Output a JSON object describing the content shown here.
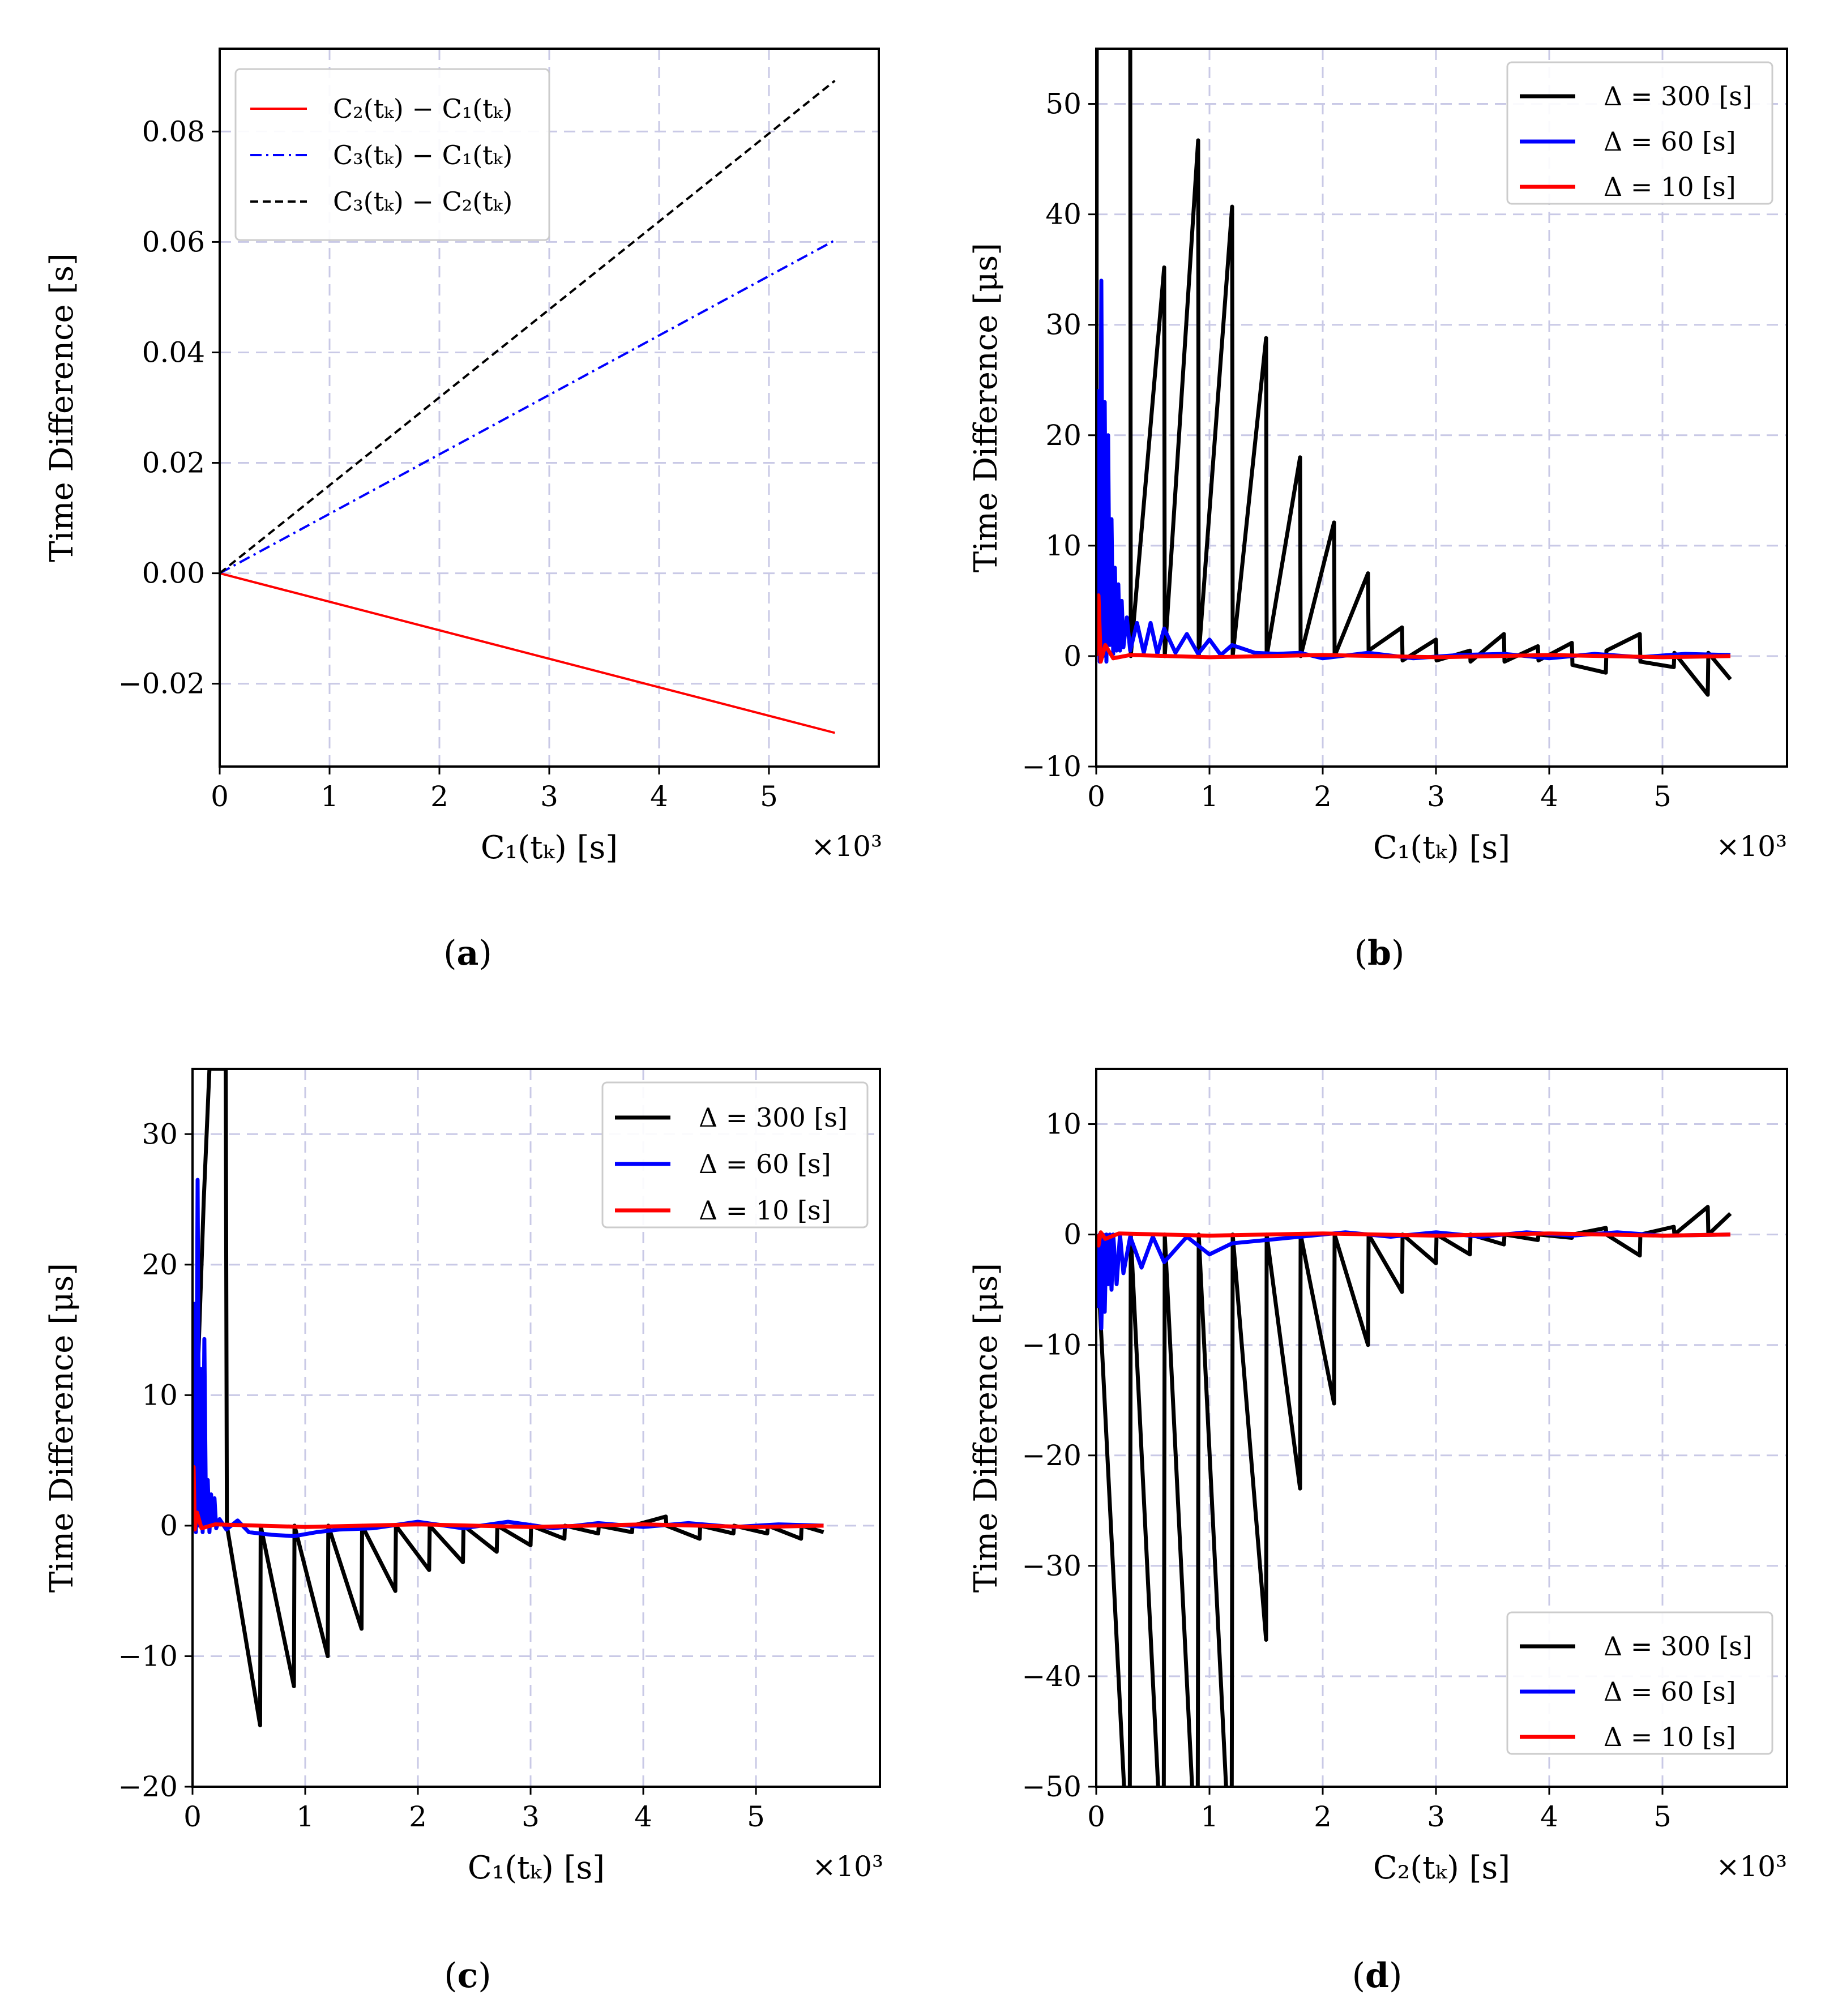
{
  "figure": {
    "panels": [
      {
        "caption": "a",
        "ylabel": "Time Difference [s]",
        "xlabel": "C₁(tₖ) [s]",
        "x_multiplier": "×10³",
        "legend_position": "top-left",
        "xlim": [
          0,
          6000
        ],
        "ylim": [
          -0.035,
          0.095
        ],
        "xticks": [
          0,
          1000,
          2000,
          3000,
          4000,
          5000
        ],
        "xtick_labels": [
          "0",
          "1",
          "2",
          "3",
          "4",
          "5"
        ],
        "yticks": [
          -0.02,
          0.0,
          0.02,
          0.04,
          0.06,
          0.08
        ],
        "ytick_labels": [
          "−0.02",
          "0.00",
          "0.02",
          "0.04",
          "0.06",
          "0.08"
        ]
      },
      {
        "caption": "b",
        "ylabel": "Time Difference [μs]",
        "xlabel": "C₁(tₖ) [s]",
        "x_multiplier": "×10³",
        "legend_position": "top-right",
        "xlim": [
          0,
          6100
        ],
        "ylim": [
          -10,
          55
        ],
        "xticks": [
          0,
          1000,
          2000,
          3000,
          4000,
          5000
        ],
        "xtick_labels": [
          "0",
          "1",
          "2",
          "3",
          "4",
          "5"
        ],
        "yticks": [
          -10,
          0,
          10,
          20,
          30,
          40,
          50
        ],
        "ytick_labels": [
          "−10",
          "0",
          "10",
          "20",
          "30",
          "40",
          "50"
        ]
      },
      {
        "caption": "c",
        "ylabel": "Time Difference [μs]",
        "xlabel": "C₁(tₖ) [s]",
        "x_multiplier": "×10³",
        "legend_position": "top-right",
        "xlim": [
          0,
          6100
        ],
        "ylim": [
          -20,
          35
        ],
        "xticks": [
          0,
          1000,
          2000,
          3000,
          4000,
          5000
        ],
        "xtick_labels": [
          "0",
          "1",
          "2",
          "3",
          "4",
          "5"
        ],
        "yticks": [
          -20,
          -10,
          0,
          10,
          20,
          30
        ],
        "ytick_labels": [
          "−20",
          "−10",
          "0",
          "10",
          "20",
          "30"
        ]
      },
      {
        "caption": "d",
        "ylabel": "Time Difference [μs]",
        "xlabel": "C₂(tₖ) [s]",
        "x_multiplier": "×10³",
        "legend_position": "lower-right",
        "xlim": [
          0,
          6100
        ],
        "ylim": [
          -50,
          15
        ],
        "xticks": [
          0,
          1000,
          2000,
          3000,
          4000,
          5000
        ],
        "xtick_labels": [
          "0",
          "1",
          "2",
          "3",
          "4",
          "5"
        ],
        "yticks": [
          -50,
          -40,
          -30,
          -20,
          -10,
          0,
          10
        ],
        "ytick_labels": [
          "−50",
          "−40",
          "−30",
          "−20",
          "−10",
          "0",
          "10"
        ]
      }
    ]
  },
  "chart_data": [
    {
      "type": "line",
      "title": "(a)",
      "xlabel": "C₁(tₖ) [s]",
      "ylabel": "Time Difference [s]",
      "xlim": [
        0,
        6000
      ],
      "ylim": [
        -0.035,
        0.095
      ],
      "grid": true,
      "series": [
        {
          "name": "C₂(tₖ) − C₁(tₖ)",
          "color": "#ff0000",
          "dash": "solid",
          "x": [
            0,
            5600
          ],
          "y": [
            0.0,
            -0.0289
          ]
        },
        {
          "name": "C₃(tₖ) − C₁(tₖ)",
          "color": "#0000ff",
          "dash": "dashdot",
          "x": [
            0,
            5600
          ],
          "y": [
            0.0,
            0.0603
          ]
        },
        {
          "name": "C₃(tₖ) − C₂(tₖ)",
          "color": "#000000",
          "dash": "dashed",
          "x": [
            0,
            5600
          ],
          "y": [
            0.0,
            0.0892
          ]
        }
      ]
    },
    {
      "type": "line",
      "title": "(b)",
      "xlabel": "C₁(tₖ) [s]",
      "ylabel": "Time Difference [μs]",
      "xlim": [
        0,
        6100
      ],
      "ylim": [
        -10,
        55
      ],
      "grid": true,
      "series": [
        {
          "name": "Δ = 300 [s]",
          "color": "#000000",
          "x": [
            0,
            5,
            300,
            305,
            600,
            605,
            900,
            905,
            1200,
            1205,
            1500,
            1505,
            1800,
            1805,
            2100,
            2105,
            2400,
            2405,
            2700,
            2705,
            3000,
            3005,
            3300,
            3305,
            3600,
            3605,
            3900,
            3905,
            4200,
            4205,
            4500,
            4505,
            4800,
            4805,
            5100,
            5105,
            5400,
            5405,
            5600
          ],
          "y": [
            0,
            60,
            60,
            0,
            35.2,
            0,
            46.7,
            0,
            40.7,
            0,
            28.8,
            0,
            18.0,
            0,
            12.1,
            0,
            7.5,
            0.5,
            2.6,
            -0.4,
            1.5,
            -0.4,
            0.5,
            -0.5,
            2.0,
            -0.5,
            0.9,
            -0.4,
            1.2,
            -0.8,
            -1.5,
            0.5,
            2.0,
            -0.5,
            -1.0,
            0.3,
            -3.5,
            0.3,
            -2.1
          ]
        },
        {
          "name": "Δ = 60 [s]",
          "color": "#0000ff",
          "x": [
            0,
            15,
            30,
            45,
            60,
            75,
            90,
            105,
            120,
            135,
            150,
            165,
            180,
            195,
            210,
            225,
            240,
            270,
            300,
            360,
            420,
            480,
            540,
            600,
            700,
            800,
            900,
            1000,
            1100,
            1200,
            1400,
            1600,
            1800,
            2000,
            2400,
            2800,
            3200,
            3600,
            4000,
            4400,
            4800,
            5200,
            5600
          ],
          "y": [
            0,
            24,
            -0.5,
            34,
            0,
            23,
            -0.5,
            20,
            1.0,
            12.4,
            0.2,
            8.0,
            0.5,
            6.5,
            0.5,
            5.0,
            0.8,
            3.5,
            0.5,
            3.0,
            0.3,
            3.0,
            0.2,
            2.5,
            0.3,
            2.0,
            0.2,
            1.5,
            0.1,
            1.0,
            0.3,
            0.2,
            0.3,
            -0.2,
            0.3,
            -0.2,
            0.1,
            0.2,
            -0.2,
            0.2,
            -0.1,
            0.2,
            0.1
          ]
        },
        {
          "name": "Δ = 10 [s]",
          "color": "#ff0000",
          "x": [
            0,
            20,
            40,
            80,
            150,
            300,
            1000,
            2000,
            3000,
            4000,
            5000,
            5600
          ],
          "y": [
            0,
            5.5,
            -0.5,
            1.0,
            -0.2,
            0.1,
            -0.1,
            0.1,
            -0.1,
            0.1,
            -0.1,
            0.0
          ]
        }
      ]
    },
    {
      "type": "line",
      "title": "(c)",
      "xlabel": "C₁(tₖ) [s]",
      "ylabel": "Time Difference [μs]",
      "xlim": [
        0,
        6100
      ],
      "ylim": [
        -20,
        35
      ],
      "grid": true,
      "series": [
        {
          "name": "Δ = 300 [s]",
          "color": "#000000",
          "x": [
            0,
            100,
            150,
            200,
            295,
            305,
            600,
            605,
            900,
            905,
            1200,
            1205,
            1500,
            1505,
            1800,
            1805,
            2100,
            2105,
            2400,
            2405,
            2700,
            2705,
            3000,
            3005,
            3300,
            3305,
            3600,
            3605,
            3900,
            3905,
            4200,
            4205,
            4500,
            4505,
            4800,
            4805,
            5100,
            5105,
            5400,
            5405,
            5600
          ],
          "y": [
            0,
            25,
            35,
            35,
            35,
            0,
            -15.3,
            0,
            -12.3,
            0,
            -10.0,
            0,
            -7.9,
            0,
            -5.0,
            0,
            -3.4,
            0,
            -2.8,
            0,
            -2.0,
            0,
            -1.5,
            0,
            -1.0,
            0,
            -0.6,
            0,
            -0.5,
            0,
            0.7,
            0,
            -1.0,
            0,
            -0.6,
            0,
            -0.6,
            0,
            -1.0,
            0,
            -0.5
          ]
        },
        {
          "name": "Δ = 60 [s]",
          "color": "#0000ff",
          "x": [
            0,
            15,
            30,
            45,
            60,
            75,
            90,
            105,
            120,
            135,
            150,
            165,
            180,
            195,
            210,
            240,
            300,
            400,
            500,
            700,
            900,
            1100,
            1300,
            1600,
            2000,
            2400,
            2800,
            3200,
            3600,
            4000,
            4400,
            4800,
            5200,
            5600
          ],
          "y": [
            0,
            17,
            -0.5,
            26.5,
            0,
            12,
            -0.5,
            14.3,
            0,
            3.5,
            -0.5,
            2.4,
            0.2,
            2.1,
            -0.2,
            0.5,
            -0.3,
            0.4,
            -0.5,
            -0.7,
            -0.8,
            -0.5,
            -0.3,
            -0.2,
            0.3,
            -0.2,
            0.3,
            -0.2,
            0.2,
            -0.1,
            0.2,
            -0.1,
            0.1,
            0.0
          ]
        },
        {
          "name": "Δ = 10 [s]",
          "color": "#ff0000",
          "x": [
            0,
            10,
            20,
            40,
            80,
            200,
            1000,
            2000,
            3000,
            4000,
            5000,
            5600
          ],
          "y": [
            0,
            4.5,
            -0.3,
            1.0,
            -0.2,
            0.1,
            -0.1,
            0.1,
            -0.1,
            0.1,
            -0.1,
            0.0
          ]
        }
      ]
    },
    {
      "type": "line",
      "title": "(d)",
      "xlabel": "C₂(tₖ) [s]",
      "ylabel": "Time Difference [μs]",
      "xlim": [
        0,
        6100
      ],
      "ylim": [
        -50,
        15
      ],
      "grid": true,
      "series": [
        {
          "name": "Δ = 300 [s]",
          "color": "#000000",
          "x": [
            0,
            295,
            305,
            595,
            605,
            895,
            905,
            1195,
            1205,
            1500,
            1505,
            1800,
            1805,
            2100,
            2105,
            2400,
            2405,
            2700,
            2705,
            3000,
            3005,
            3300,
            3305,
            3600,
            3605,
            3900,
            3905,
            4200,
            4205,
            4500,
            4505,
            4800,
            4805,
            5100,
            5105,
            5400,
            5405,
            5600
          ],
          "y": [
            0,
            -60,
            0,
            -60,
            0,
            -60,
            0,
            -60,
            0,
            -36.7,
            0,
            -23.0,
            0,
            -15.3,
            0,
            -10.0,
            0,
            -5.2,
            0,
            -2.6,
            0,
            -1.8,
            0,
            -0.9,
            0,
            -0.5,
            0,
            -0.3,
            0,
            0.6,
            0,
            -1.9,
            0,
            0.7,
            0,
            2.5,
            0,
            1.9
          ]
        },
        {
          "name": "Δ = 60 [s]",
          "color": "#0000ff",
          "x": [
            0,
            15,
            30,
            45,
            60,
            75,
            90,
            105,
            120,
            135,
            150,
            180,
            210,
            240,
            300,
            400,
            500,
            600,
            800,
            1000,
            1200,
            1500,
            1800,
            2200,
            2600,
            3000,
            3400,
            3800,
            4200,
            4600,
            5000,
            5600
          ],
          "y": [
            0,
            -6.5,
            0,
            -8.5,
            0,
            -7.0,
            0,
            -4.5,
            0,
            -5.0,
            0,
            -4.5,
            0,
            -3.5,
            -0.2,
            -3.0,
            -0.2,
            -2.5,
            -0.2,
            -1.8,
            -0.8,
            -0.5,
            -0.2,
            0.2,
            -0.2,
            0.2,
            -0.2,
            0.2,
            -0.1,
            0.2,
            -0.1,
            0.0
          ]
        },
        {
          "name": "Δ = 10 [s]",
          "color": "#ff0000",
          "x": [
            0,
            20,
            40,
            80,
            200,
            1000,
            2000,
            3000,
            4000,
            5000,
            5600
          ],
          "y": [
            0,
            -1.0,
            0.2,
            -0.4,
            0.1,
            -0.1,
            0.1,
            -0.1,
            0.1,
            -0.1,
            0.0
          ]
        }
      ]
    }
  ]
}
